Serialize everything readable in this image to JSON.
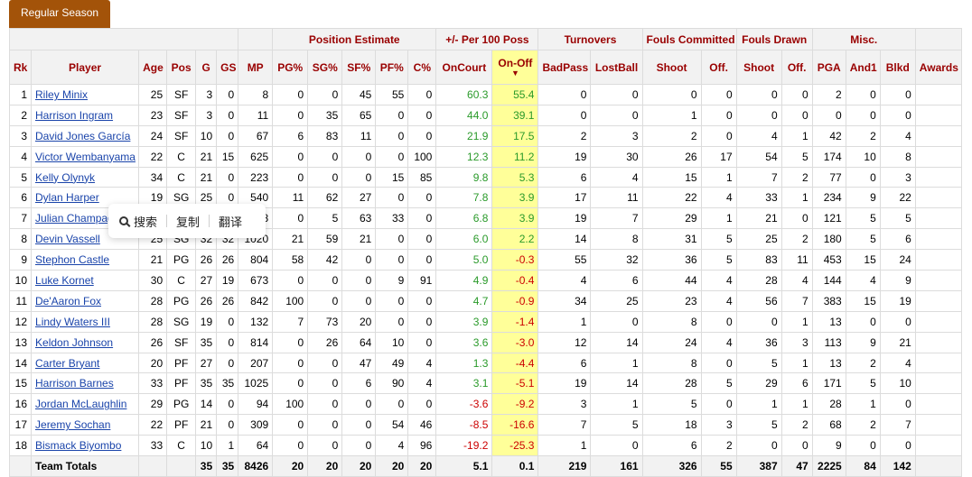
{
  "tab": {
    "label": "Regular Season"
  },
  "header_groups": [
    {
      "label": "",
      "span": 6
    },
    {
      "label": "",
      "span": 1
    },
    {
      "label": "Position Estimate",
      "span": 5
    },
    {
      "label": "+/- Per 100 Poss",
      "span": 2
    },
    {
      "label": "Turnovers",
      "span": 2
    },
    {
      "label": "Fouls Committed",
      "span": 2
    },
    {
      "label": "Fouls Drawn",
      "span": 2
    },
    {
      "label": "Misc.",
      "span": 3
    },
    {
      "label": "",
      "span": 1
    }
  ],
  "columns": [
    "Rk",
    "Player",
    "Age",
    "Pos",
    "G",
    "GS",
    "MP",
    "PG%",
    "SG%",
    "SF%",
    "PF%",
    "C%",
    "OnCourt",
    "On-Off",
    "BadPass",
    "LostBall",
    "Shoot",
    "Off.",
    "Shoot",
    "Off.",
    "PGA",
    "And1",
    "Blkd",
    "Awards"
  ],
  "sorted_column": "On-Off",
  "rows": [
    [
      "1",
      "Riley Minix",
      "25",
      "SF",
      "3",
      "0",
      "8",
      "0",
      "0",
      "45",
      "55",
      "0",
      "60.3",
      "55.4",
      "0",
      "0",
      "0",
      "0",
      "0",
      "0",
      "2",
      "0",
      "0",
      ""
    ],
    [
      "2",
      "Harrison Ingram",
      "23",
      "SF",
      "3",
      "0",
      "11",
      "0",
      "35",
      "65",
      "0",
      "0",
      "44.0",
      "39.1",
      "0",
      "0",
      "1",
      "0",
      "0",
      "0",
      "0",
      "0",
      "0",
      ""
    ],
    [
      "3",
      "David Jones García",
      "24",
      "SF",
      "10",
      "0",
      "67",
      "6",
      "83",
      "11",
      "0",
      "0",
      "21.9",
      "17.5",
      "2",
      "3",
      "2",
      "0",
      "4",
      "1",
      "42",
      "2",
      "4",
      ""
    ],
    [
      "4",
      "Victor Wembanyama",
      "22",
      "C",
      "21",
      "15",
      "625",
      "0",
      "0",
      "0",
      "0",
      "100",
      "12.3",
      "11.2",
      "19",
      "30",
      "26",
      "17",
      "54",
      "5",
      "174",
      "10",
      "8",
      ""
    ],
    [
      "5",
      "Kelly Olynyk",
      "34",
      "C",
      "21",
      "0",
      "223",
      "0",
      "0",
      "0",
      "15",
      "85",
      "9.8",
      "5.3",
      "6",
      "4",
      "15",
      "1",
      "7",
      "2",
      "77",
      "0",
      "3",
      ""
    ],
    [
      "6",
      "Dylan Harper",
      "19",
      "SG",
      "25",
      "0",
      "540",
      "11",
      "62",
      "27",
      "0",
      "0",
      "7.8",
      "3.9",
      "17",
      "11",
      "22",
      "4",
      "33",
      "1",
      "234",
      "9",
      "22",
      ""
    ],
    [
      "7",
      "Julian Champagnie",
      "",
      "",
      "",
      "",
      "8",
      "0",
      "5",
      "63",
      "33",
      "0",
      "6.8",
      "3.9",
      "19",
      "7",
      "29",
      "1",
      "21",
      "0",
      "121",
      "5",
      "5",
      ""
    ],
    [
      "8",
      "Devin Vassell",
      "25",
      "SG",
      "32",
      "32",
      "1020",
      "21",
      "59",
      "21",
      "0",
      "0",
      "6.0",
      "2.2",
      "14",
      "8",
      "31",
      "5",
      "25",
      "2",
      "180",
      "5",
      "6",
      ""
    ],
    [
      "9",
      "Stephon Castle",
      "21",
      "PG",
      "26",
      "26",
      "804",
      "58",
      "42",
      "0",
      "0",
      "0",
      "5.0",
      "-0.3",
      "55",
      "32",
      "36",
      "5",
      "83",
      "11",
      "453",
      "15",
      "24",
      ""
    ],
    [
      "10",
      "Luke Kornet",
      "30",
      "C",
      "27",
      "19",
      "673",
      "0",
      "0",
      "0",
      "9",
      "91",
      "4.9",
      "-0.4",
      "4",
      "6",
      "44",
      "4",
      "28",
      "4",
      "144",
      "4",
      "9",
      ""
    ],
    [
      "11",
      "De'Aaron Fox",
      "28",
      "PG",
      "26",
      "26",
      "842",
      "100",
      "0",
      "0",
      "0",
      "0",
      "4.7",
      "-0.9",
      "34",
      "25",
      "23",
      "4",
      "56",
      "7",
      "383",
      "15",
      "19",
      ""
    ],
    [
      "12",
      "Lindy Waters III",
      "28",
      "SG",
      "19",
      "0",
      "132",
      "7",
      "73",
      "20",
      "0",
      "0",
      "3.9",
      "-1.4",
      "1",
      "0",
      "8",
      "0",
      "0",
      "1",
      "13",
      "0",
      "0",
      ""
    ],
    [
      "13",
      "Keldon Johnson",
      "26",
      "SF",
      "35",
      "0",
      "814",
      "0",
      "26",
      "64",
      "10",
      "0",
      "3.6",
      "-3.0",
      "12",
      "14",
      "24",
      "4",
      "36",
      "3",
      "113",
      "9",
      "21",
      ""
    ],
    [
      "14",
      "Carter Bryant",
      "20",
      "PF",
      "27",
      "0",
      "207",
      "0",
      "0",
      "47",
      "49",
      "4",
      "1.3",
      "-4.4",
      "6",
      "1",
      "8",
      "0",
      "5",
      "1",
      "13",
      "2",
      "4",
      ""
    ],
    [
      "15",
      "Harrison Barnes",
      "33",
      "PF",
      "35",
      "35",
      "1025",
      "0",
      "0",
      "6",
      "90",
      "4",
      "3.1",
      "-5.1",
      "19",
      "14",
      "28",
      "5",
      "29",
      "6",
      "171",
      "5",
      "10",
      ""
    ],
    [
      "16",
      "Jordan McLaughlin",
      "29",
      "PG",
      "14",
      "0",
      "94",
      "100",
      "0",
      "0",
      "0",
      "0",
      "-3.6",
      "-9.2",
      "3",
      "1",
      "5",
      "0",
      "1",
      "1",
      "28",
      "1",
      "0",
      ""
    ],
    [
      "17",
      "Jeremy Sochan",
      "22",
      "PF",
      "21",
      "0",
      "309",
      "0",
      "0",
      "0",
      "54",
      "46",
      "-8.5",
      "-16.6",
      "7",
      "5",
      "18",
      "3",
      "5",
      "2",
      "68",
      "2",
      "7",
      ""
    ],
    [
      "18",
      "Bismack Biyombo",
      "33",
      "C",
      "10",
      "1",
      "64",
      "0",
      "0",
      "0",
      "4",
      "96",
      "-19.2",
      "-25.3",
      "1",
      "0",
      "6",
      "2",
      "0",
      "0",
      "9",
      "0",
      "0",
      ""
    ]
  ],
  "totals": [
    "",
    "Team Totals",
    "",
    "",
    "35",
    "35",
    "8426",
    "20",
    "20",
    "20",
    "20",
    "20",
    "5.1",
    "0.1",
    "219",
    "161",
    "326",
    "55",
    "387",
    "47",
    "2225",
    "84",
    "142",
    ""
  ],
  "popup": {
    "search": "搜索",
    "copy": "复制",
    "translate": "翻译"
  },
  "colors": {
    "tab_bg": "#a35309",
    "header_text": "#990000",
    "positive": "#2a9a2a",
    "negative": "#cc0000",
    "sorted_bg": "#ffff99",
    "link": "#1a44aa"
  }
}
